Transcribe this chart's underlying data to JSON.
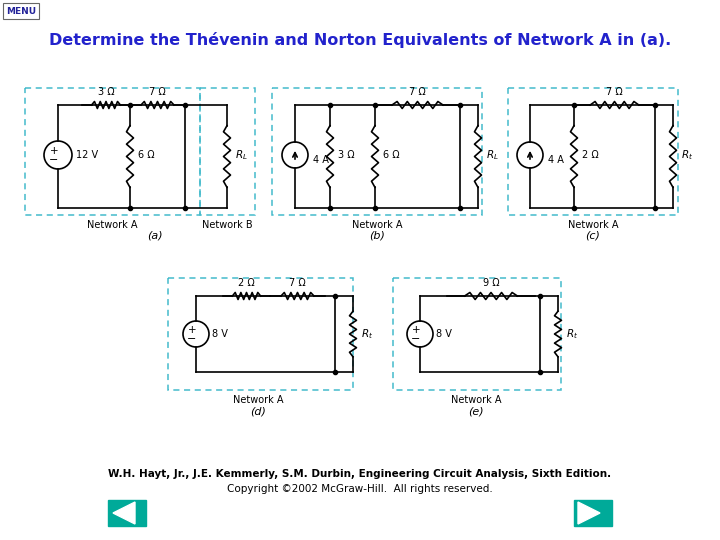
{
  "title": "Determine the Thévenin and Norton Equivalents of Network A in (a).",
  "title_color": "#2222cc",
  "title_fontsize": 11.5,
  "background_color": "#ffffff",
  "footer_line1": "W.H. Hayt, Jr., J.E. Kemmerly, S.M. Durbin, Engineering Circuit Analysis, Sixth Edition.",
  "footer_line2": "Copyright ©2002 McGraw-Hill.  All rights reserved.",
  "teal_color": "#00aa99",
  "dashed_box_color": "#44bbcc",
  "circuit_color": "#000000",
  "menu_text": "MENU"
}
